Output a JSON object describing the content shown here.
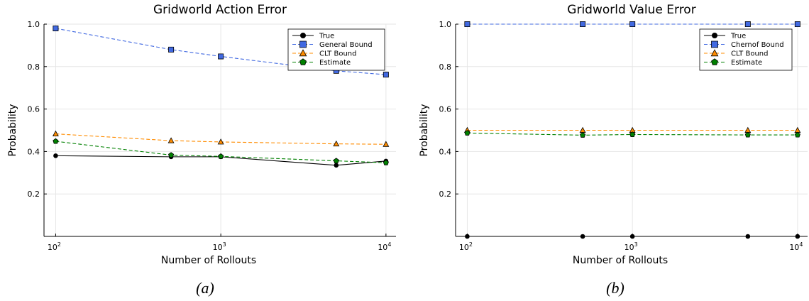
{
  "chart_data": [
    {
      "type": "line",
      "title": "Gridworld Action Error",
      "xlabel": "Number of Rollouts",
      "ylabel": "Probability",
      "caption": "(a)",
      "xscale": "log",
      "xlim": [
        85,
        11500
      ],
      "ylim": [
        0,
        1
      ],
      "x_ticks": [
        {
          "value": 100,
          "base": "10",
          "exp": "2"
        },
        {
          "value": 1000,
          "base": "10",
          "exp": "3"
        },
        {
          "value": 10000,
          "base": "10",
          "exp": "4"
        }
      ],
      "y_ticks": [
        "0.2",
        "0.4",
        "0.6",
        "0.8",
        "1.0"
      ],
      "grid": true,
      "legend_position": "top-right",
      "x": [
        100,
        500,
        1000,
        5000,
        10000
      ],
      "series": [
        {
          "name": "True",
          "values": [
            0.38,
            0.375,
            0.375,
            0.335,
            0.355
          ],
          "color": "#000000",
          "dash": "solid",
          "marker": "circle"
        },
        {
          "name": "General Bound",
          "values": [
            0.98,
            0.88,
            0.848,
            0.78,
            0.762
          ],
          "color": "#4169e1",
          "dash": "dashed",
          "marker": "square"
        },
        {
          "name": "CLT Bound",
          "values": [
            0.483,
            0.451,
            0.445,
            0.436,
            0.434
          ],
          "color": "#ff8c00",
          "dash": "dashed",
          "marker": "triangle"
        },
        {
          "name": "Estimate",
          "values": [
            0.448,
            0.383,
            0.377,
            0.356,
            0.347
          ],
          "color": "#008000",
          "dash": "dashed",
          "marker": "pentagon"
        }
      ]
    },
    {
      "type": "line",
      "title": "Gridworld Value Error",
      "xlabel": "Number of Rollouts",
      "ylabel": "Probability",
      "caption": "(b)",
      "xscale": "log",
      "xlim": [
        85,
        11500
      ],
      "ylim": [
        0,
        1
      ],
      "x_ticks": [
        {
          "value": 100,
          "base": "10",
          "exp": "2"
        },
        {
          "value": 1000,
          "base": "10",
          "exp": "3"
        },
        {
          "value": 10000,
          "base": "10",
          "exp": "4"
        }
      ],
      "y_ticks": [
        "0.2",
        "0.4",
        "0.6",
        "0.8",
        "1.0"
      ],
      "grid": true,
      "legend_position": "top-right",
      "x": [
        100,
        500,
        1000,
        5000,
        10000
      ],
      "series": [
        {
          "name": "True",
          "values": [
            0.0,
            0.0,
            0.0,
            0.0,
            0.0
          ],
          "color": "#000000",
          "dash": "solid",
          "marker": "circle"
        },
        {
          "name": "Chernof Bound",
          "values": [
            1.0,
            1.0,
            1.0,
            1.0,
            1.0
          ],
          "color": "#4169e1",
          "dash": "dashed",
          "marker": "square"
        },
        {
          "name": "CLT Bound",
          "values": [
            0.5,
            0.5,
            0.5,
            0.5,
            0.5
          ],
          "color": "#ff8c00",
          "dash": "dashed",
          "marker": "triangle"
        },
        {
          "name": "Estimate",
          "values": [
            0.487,
            0.477,
            0.48,
            0.478,
            0.478
          ],
          "color": "#008000",
          "dash": "dashed",
          "marker": "pentagon"
        }
      ]
    }
  ]
}
